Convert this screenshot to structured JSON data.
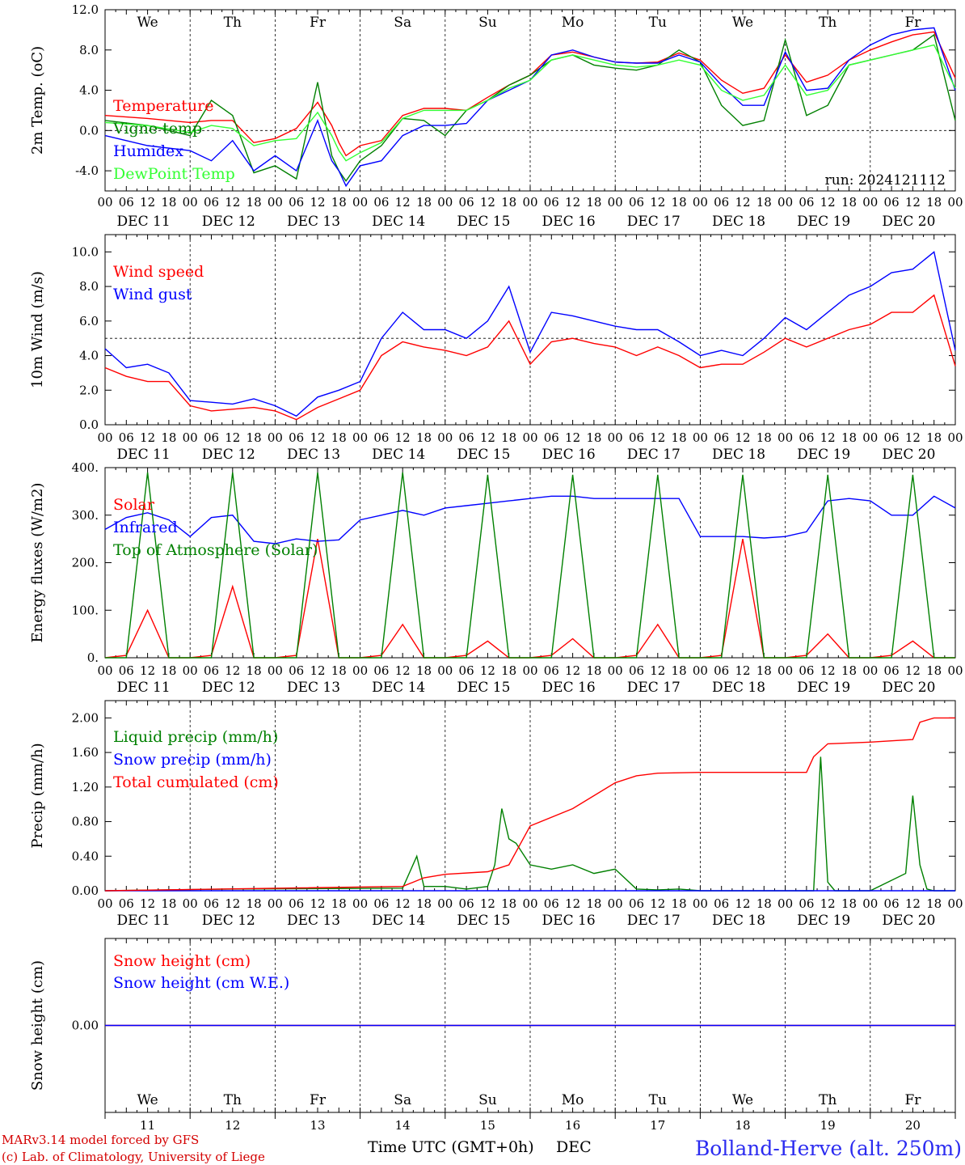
{
  "header": {},
  "footer": {
    "model_line": "MARv3.14 model forced by GFS",
    "lab_line": "(c) Lab. of Climatology, University of Liege",
    "xaxis_title": "Time UTC (GMT+0h)",
    "xaxis_month": "DEC",
    "station": "Bolland-Herve (alt. 250m)"
  },
  "hour_ticks": [
    "00",
    "06",
    "12",
    "18"
  ],
  "last_hour_tick": "00",
  "day_labels": [
    "DEC 11",
    "DEC 12",
    "DEC 13",
    "DEC 14",
    "DEC 15",
    "DEC 16",
    "DEC 17",
    "DEC 18",
    "DEC 19",
    "DEC 20"
  ],
  "weekdays": [
    "We",
    "Th",
    "Fr",
    "Sa",
    "Su",
    "Mo",
    "Tu",
    "We",
    "Th",
    "Fr"
  ],
  "weekend_flags": [
    false,
    false,
    false,
    true,
    true,
    false,
    false,
    false,
    false,
    false
  ],
  "day_numbers": [
    "11",
    "12",
    "13",
    "14",
    "15",
    "16",
    "17",
    "18",
    "19",
    "20"
  ],
  "colors": {
    "red": "#ff0000",
    "green": "#008000",
    "blue": "#0000ff",
    "lime": "#33ff33",
    "weekend": "#ff0000"
  },
  "chart_data": [
    {
      "type": "line",
      "ylabel": "2m Temp. (oC)",
      "ylim": [
        -6,
        12
      ],
      "yticks": [
        -4,
        0,
        4,
        8,
        12
      ],
      "ytick_labels": [
        "-4.0",
        "0.0",
        "4.0",
        "8.0",
        "12.0"
      ],
      "ref_line": 0,
      "annotation": "run: 2024121112",
      "x_hours": [
        0,
        12,
        24,
        30,
        36,
        42,
        48,
        54,
        60,
        64,
        66,
        68,
        72,
        78,
        84,
        90,
        96,
        102,
        108,
        114,
        120,
        126,
        132,
        138,
        144,
        150,
        156,
        162,
        168,
        174,
        180,
        186,
        192,
        198,
        204,
        210,
        216,
        222,
        228,
        234,
        240
      ],
      "series": [
        {
          "name": "Temperature",
          "color": "#ff0000",
          "values": [
            1.5,
            1.2,
            0.8,
            1.0,
            1.0,
            -1.2,
            -0.8,
            0.2,
            2.8,
            0.5,
            -1.2,
            -2.5,
            -1.5,
            -1.0,
            1.5,
            2.2,
            2.2,
            2.0,
            3.3,
            4.5,
            5.5,
            7.5,
            7.8,
            7.3,
            6.8,
            6.7,
            6.8,
            7.7,
            7.0,
            5.0,
            3.7,
            4.2,
            7.5,
            4.8,
            5.5,
            7.0,
            8.0,
            8.8,
            9.5,
            9.8,
            5.2
          ]
        },
        {
          "name": "Vigne temp",
          "color": "#008000",
          "values": [
            1.0,
            0.5,
            -0.5,
            3.0,
            1.5,
            -4.2,
            -3.5,
            -4.8,
            4.8,
            -2.5,
            -4.0,
            -5.0,
            -3.0,
            -1.5,
            1.2,
            1.0,
            -0.5,
            2.0,
            3.0,
            4.5,
            5.5,
            7.0,
            7.5,
            6.5,
            6.2,
            6.0,
            6.5,
            8.0,
            6.8,
            2.5,
            0.5,
            1.0,
            9.0,
            1.5,
            2.5,
            6.5,
            7.0,
            7.5,
            8.0,
            9.5,
            1.0
          ]
        },
        {
          "name": "Humidex",
          "color": "#0000ff",
          "values": [
            -0.5,
            -1.5,
            -2.0,
            -3.0,
            -1.0,
            -4.0,
            -2.5,
            -4.0,
            1.0,
            -3.0,
            -4.0,
            -5.5,
            -3.5,
            -3.0,
            -0.5,
            0.5,
            0.5,
            0.7,
            3.0,
            4.0,
            5.0,
            7.5,
            8.0,
            7.3,
            6.8,
            6.7,
            6.7,
            7.5,
            6.8,
            4.5,
            2.5,
            2.5,
            7.8,
            4.0,
            4.2,
            7.0,
            8.5,
            9.5,
            10.0,
            10.2,
            4.0
          ]
        },
        {
          "name": "DewPoint Temp",
          "color": "#33ff33",
          "values": [
            0.8,
            0.5,
            -0.2,
            0.5,
            0.2,
            -1.5,
            -1.0,
            -0.8,
            1.8,
            -0.5,
            -2.0,
            -3.0,
            -2.2,
            -1.2,
            1.2,
            2.0,
            2.0,
            2.0,
            3.0,
            4.2,
            5.0,
            7.0,
            7.5,
            7.0,
            6.5,
            6.3,
            6.5,
            7.0,
            6.5,
            4.0,
            3.0,
            3.5,
            6.5,
            3.5,
            4.0,
            6.5,
            7.0,
            7.5,
            8.0,
            8.5,
            4.2
          ]
        }
      ]
    },
    {
      "type": "line",
      "ylabel": "10m Wind (m/s)",
      "ylim": [
        0,
        11
      ],
      "yticks": [
        0,
        2,
        4,
        6,
        8,
        10
      ],
      "ytick_labels": [
        "0.0",
        "2.0",
        "4.0",
        "6.0",
        "8.0",
        "10.0"
      ],
      "ref_line": 5,
      "x_hours": [
        0,
        6,
        12,
        18,
        24,
        30,
        36,
        42,
        48,
        54,
        60,
        66,
        72,
        78,
        84,
        90,
        96,
        102,
        108,
        114,
        120,
        126,
        132,
        138,
        144,
        150,
        156,
        162,
        168,
        174,
        180,
        186,
        192,
        198,
        204,
        210,
        216,
        222,
        228,
        234,
        240
      ],
      "series": [
        {
          "name": "Wind speed",
          "color": "#ff0000",
          "values": [
            3.3,
            2.8,
            2.5,
            2.5,
            1.1,
            0.8,
            0.9,
            1.0,
            0.8,
            0.3,
            1.0,
            1.5,
            2.0,
            4.0,
            4.8,
            4.5,
            4.3,
            4.0,
            4.5,
            6.0,
            3.5,
            4.8,
            5.0,
            4.7,
            4.5,
            4.0,
            4.5,
            4.0,
            3.3,
            3.5,
            3.5,
            4.2,
            5.0,
            4.5,
            5.0,
            5.5,
            5.8,
            6.5,
            6.5,
            7.5,
            3.4
          ]
        },
        {
          "name": "Wind gust",
          "color": "#0000ff",
          "values": [
            4.4,
            3.3,
            3.5,
            3.0,
            1.4,
            1.3,
            1.2,
            1.5,
            1.1,
            0.5,
            1.6,
            2.0,
            2.5,
            5.0,
            6.5,
            5.5,
            5.5,
            5.0,
            6.0,
            8.0,
            4.2,
            6.5,
            6.3,
            6.0,
            5.7,
            5.5,
            5.5,
            4.8,
            4.0,
            4.3,
            4.0,
            5.0,
            6.2,
            5.5,
            6.5,
            7.5,
            8.0,
            8.8,
            9.0,
            10.0,
            4.3
          ]
        }
      ]
    },
    {
      "type": "line",
      "ylabel": "Energy fluxes (W/m2)",
      "ylim": [
        0,
        400
      ],
      "yticks": [
        0,
        100,
        200,
        300,
        400
      ],
      "ytick_labels": [
        "0.",
        "100.",
        "200.",
        "300.",
        "400."
      ],
      "x_hours": [
        0,
        6,
        12,
        18,
        24,
        30,
        36,
        42,
        48,
        54,
        60,
        66,
        72,
        78,
        84,
        90,
        96,
        102,
        108,
        114,
        120,
        126,
        132,
        138,
        144,
        150,
        156,
        162,
        168,
        174,
        180,
        186,
        192,
        198,
        204,
        210,
        216,
        222,
        228,
        234,
        240
      ],
      "series": [
        {
          "name": "Solar",
          "color": "#ff0000",
          "values": [
            0,
            5,
            100,
            0,
            0,
            5,
            150,
            0,
            0,
            5,
            250,
            0,
            0,
            5,
            70,
            0,
            0,
            5,
            35,
            0,
            0,
            5,
            40,
            0,
            0,
            5,
            70,
            0,
            0,
            5,
            250,
            0,
            0,
            5,
            50,
            0,
            0,
            5,
            35,
            0,
            0
          ]
        },
        {
          "name": "Infrared",
          "color": "#0000ff",
          "values": [
            270,
            295,
            305,
            290,
            255,
            295,
            300,
            245,
            240,
            250,
            245,
            248,
            290,
            300,
            310,
            300,
            315,
            320,
            325,
            330,
            335,
            340,
            340,
            335,
            335,
            335,
            335,
            335,
            255,
            255,
            255,
            252,
            255,
            265,
            330,
            335,
            330,
            300,
            300,
            340,
            315
          ]
        },
        {
          "name": "Top of Atmosphere (Solar)",
          "color": "#008000",
          "values": [
            0,
            0,
            390,
            0,
            0,
            0,
            390,
            0,
            0,
            0,
            390,
            0,
            0,
            0,
            390,
            0,
            0,
            0,
            385,
            0,
            0,
            0,
            385,
            0,
            0,
            0,
            385,
            0,
            0,
            0,
            385,
            0,
            0,
            0,
            385,
            0,
            0,
            0,
            385,
            0,
            0
          ]
        }
      ]
    },
    {
      "type": "line",
      "ylabel": "Precip (mm/h)",
      "ylim": [
        0,
        2.2
      ],
      "yticks": [
        0,
        0.4,
        0.8,
        1.2,
        1.6,
        2.0
      ],
      "ytick_labels": [
        "0.00",
        "0.40",
        "0.80",
        "1.20",
        "1.60",
        "2.00"
      ],
      "series": [
        {
          "name": "Liquid precip (mm/h)",
          "color": "#008000",
          "x_hours": [
            0,
            36,
            84,
            88,
            90,
            96,
            102,
            108,
            110,
            112,
            114,
            116,
            120,
            126,
            132,
            138,
            144,
            150,
            156,
            162,
            168,
            180,
            200,
            202,
            204,
            206,
            216,
            226,
            228,
            230,
            232,
            234,
            240
          ],
          "values": [
            0,
            0.02,
            0.03,
            0.4,
            0.05,
            0.05,
            0.02,
            0.05,
            0.3,
            0.95,
            0.6,
            0.55,
            0.3,
            0.25,
            0.3,
            0.2,
            0.25,
            0.02,
            0.01,
            0.02,
            0,
            0,
            0,
            1.55,
            0.1,
            0,
            0,
            0.2,
            1.1,
            0.3,
            0.02,
            0,
            0
          ]
        },
        {
          "name": "Snow precip (mm/h)",
          "color": "#0000ff",
          "x_hours": [
            0,
            240
          ],
          "values": [
            0,
            0
          ]
        },
        {
          "name": "Total cumulated (cm)",
          "color": "#ff0000",
          "x_hours": [
            0,
            84,
            90,
            96,
            108,
            114,
            120,
            132,
            144,
            150,
            156,
            168,
            180,
            198,
            200,
            204,
            216,
            228,
            230,
            234,
            240
          ],
          "values": [
            0,
            0.05,
            0.15,
            0.19,
            0.22,
            0.3,
            0.75,
            0.95,
            1.25,
            1.33,
            1.36,
            1.37,
            1.37,
            1.37,
            1.55,
            1.7,
            1.72,
            1.75,
            1.95,
            2.0,
            2.0
          ]
        }
      ]
    },
    {
      "type": "line",
      "ylabel": "Snow height (cm)",
      "ylim": [
        -1,
        1
      ],
      "yticks": [
        0
      ],
      "ytick_labels": [
        "0.00"
      ],
      "x_hours": [
        0,
        240
      ],
      "series": [
        {
          "name": "Snow height (cm)",
          "color": "#ff0000",
          "values": [
            0,
            0
          ]
        },
        {
          "name": "Snow height (cm W.E.)",
          "color": "#0000ff",
          "values": [
            0,
            0
          ]
        }
      ]
    }
  ]
}
